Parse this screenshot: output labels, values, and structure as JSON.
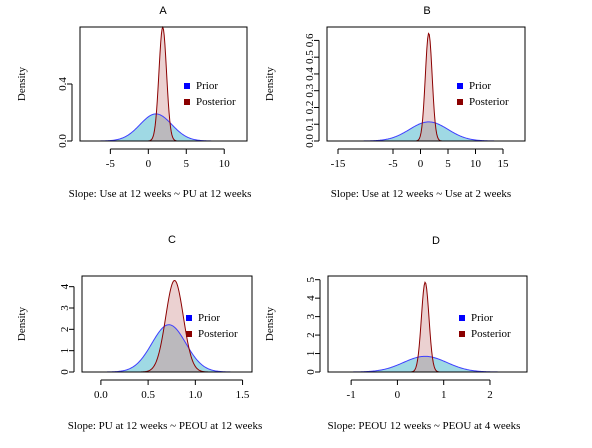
{
  "chart_data": [
    {
      "type": "area",
      "panel_label": "A",
      "xlabel": "Slope: Use at 12 weeks ~ PU at 12 weeks",
      "ylabel": "Density",
      "xlim": [
        -9,
        13
      ],
      "ylim": [
        0,
        0.8
      ],
      "xticks": [
        -5,
        0,
        5,
        10
      ],
      "yticks": [
        0.0,
        0.4
      ],
      "legend": {
        "position": "right",
        "entries": [
          "Prior",
          "Posterior"
        ]
      },
      "series": [
        {
          "name": "Prior",
          "distribution": "normal",
          "mean": 1.0,
          "sd": 2.1,
          "fill": "#9fd9e4",
          "stroke": "#3f3fff"
        },
        {
          "name": "Posterior",
          "distribution": "normal",
          "mean": 1.9,
          "sd": 0.5,
          "fill": "#e7c9c9",
          "stroke": "#8b0000"
        }
      ]
    },
    {
      "type": "area",
      "panel_label": "B",
      "xlabel": "Slope: Use at 12 weeks ~ Use at 2 weeks",
      "ylabel": "Density",
      "xlim": [
        -17,
        19
      ],
      "ylim": [
        0,
        0.68
      ],
      "xticks": [
        -15,
        -5,
        0,
        5,
        10,
        15
      ],
      "yticks": [
        0.0,
        0.1,
        0.2,
        0.3,
        0.4,
        0.5,
        0.6
      ],
      "legend": {
        "position": "right",
        "entries": [
          "Prior",
          "Posterior"
        ]
      },
      "series": [
        {
          "name": "Prior",
          "distribution": "normal",
          "mean": 1.5,
          "sd": 3.5,
          "fill": "#9fd9e4",
          "stroke": "#3f3fff"
        },
        {
          "name": "Posterior",
          "distribution": "normal",
          "mean": 1.5,
          "sd": 0.62,
          "fill": "#e7c9c9",
          "stroke": "#8b0000"
        }
      ]
    },
    {
      "type": "area",
      "panel_label": "C",
      "xlabel": "Slope: PU at 12 weeks ~ PEOU at 12 weeks",
      "ylabel": "Density",
      "xlim": [
        -0.2,
        1.6
      ],
      "ylim": [
        0,
        4.5
      ],
      "xticks": [
        0.0,
        0.5,
        1.0,
        1.5
      ],
      "yticks": [
        0,
        1,
        2,
        3,
        4
      ],
      "legend": {
        "position": "right",
        "entries": [
          "Prior",
          "Posterior"
        ]
      },
      "series": [
        {
          "name": "Prior",
          "distribution": "normal",
          "mean": 0.72,
          "sd": 0.18,
          "fill": "#9fd9e4",
          "stroke": "#3f3fff"
        },
        {
          "name": "Posterior",
          "distribution": "normal",
          "mean": 0.78,
          "sd": 0.093,
          "fill": "#e7c9c9",
          "stroke": "#8b0000"
        }
      ]
    },
    {
      "type": "area",
      "panel_label": "D",
      "xlabel": "Slope: PEOU 12 weeks ~ PEOU at 4 weeks",
      "ylabel": "Density",
      "xlim": [
        -1.5,
        2.8
      ],
      "ylim": [
        0,
        5.2
      ],
      "xticks": [
        -1,
        0,
        1,
        2
      ],
      "yticks": [
        0,
        1,
        2,
        3,
        4,
        5
      ],
      "legend": {
        "position": "right",
        "entries": [
          "Prior",
          "Posterior"
        ]
      },
      "series": [
        {
          "name": "Prior",
          "distribution": "normal",
          "mean": 0.6,
          "sd": 0.47,
          "fill": "#9fd9e4",
          "stroke": "#3f3fff"
        },
        {
          "name": "Posterior",
          "distribution": "normal",
          "mean": 0.6,
          "sd": 0.082,
          "fill": "#e7c9c9",
          "stroke": "#8b0000"
        }
      ]
    }
  ],
  "colors": {
    "prior_fill": "#9fd9e4",
    "prior_line": "#3f3fff",
    "posterior_fill": "#e7c9c9",
    "posterior_line": "#8b0000",
    "overlap_fill": "#b7b7bb",
    "legend_prior_marker": "#0000ff",
    "legend_posterior_marker": "#8b0000"
  }
}
